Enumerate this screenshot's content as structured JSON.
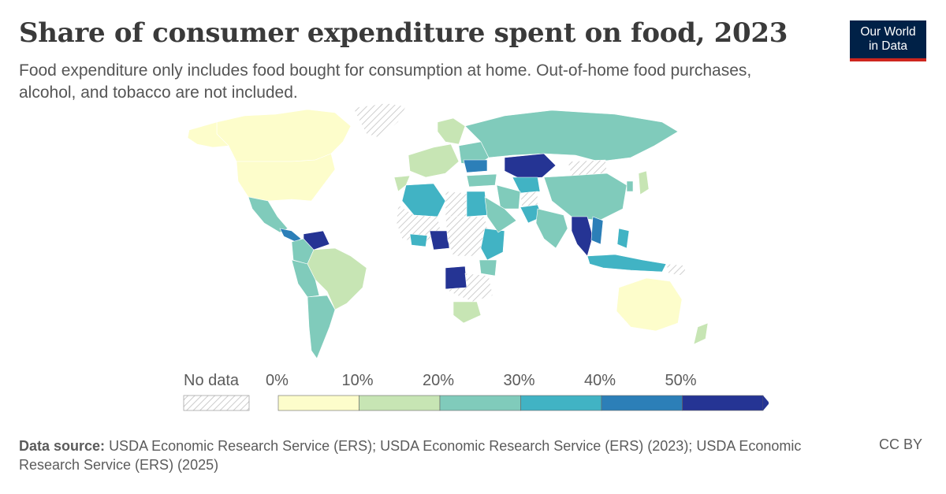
{
  "header": {
    "title": "Share of consumer expenditure spent on food, 2023",
    "subtitle": "Food expenditure only includes food bought for consumption at home. Out-of-home food purchases, alcohol, and tobacco are not included.",
    "logo_line1": "Our World",
    "logo_line2": "in Data"
  },
  "legend": {
    "no_data_label": "No data",
    "bins": [
      "0%",
      "10%",
      "20%",
      "30%",
      "40%",
      "50%"
    ],
    "colors": [
      "#fdfdcb",
      "#c7e5b4",
      "#80cbbb",
      "#41b3c4",
      "#2c7fb8",
      "#253494"
    ],
    "no_data_pattern_color": "#cccccc"
  },
  "footer": {
    "source_label": "Data source:",
    "source_text": "USDA Economic Research Service (ERS); USDA Economic Research Service (ERS) (2023); USDA Economic Research Service (ERS) (2025)",
    "license": "CC BY"
  }
}
